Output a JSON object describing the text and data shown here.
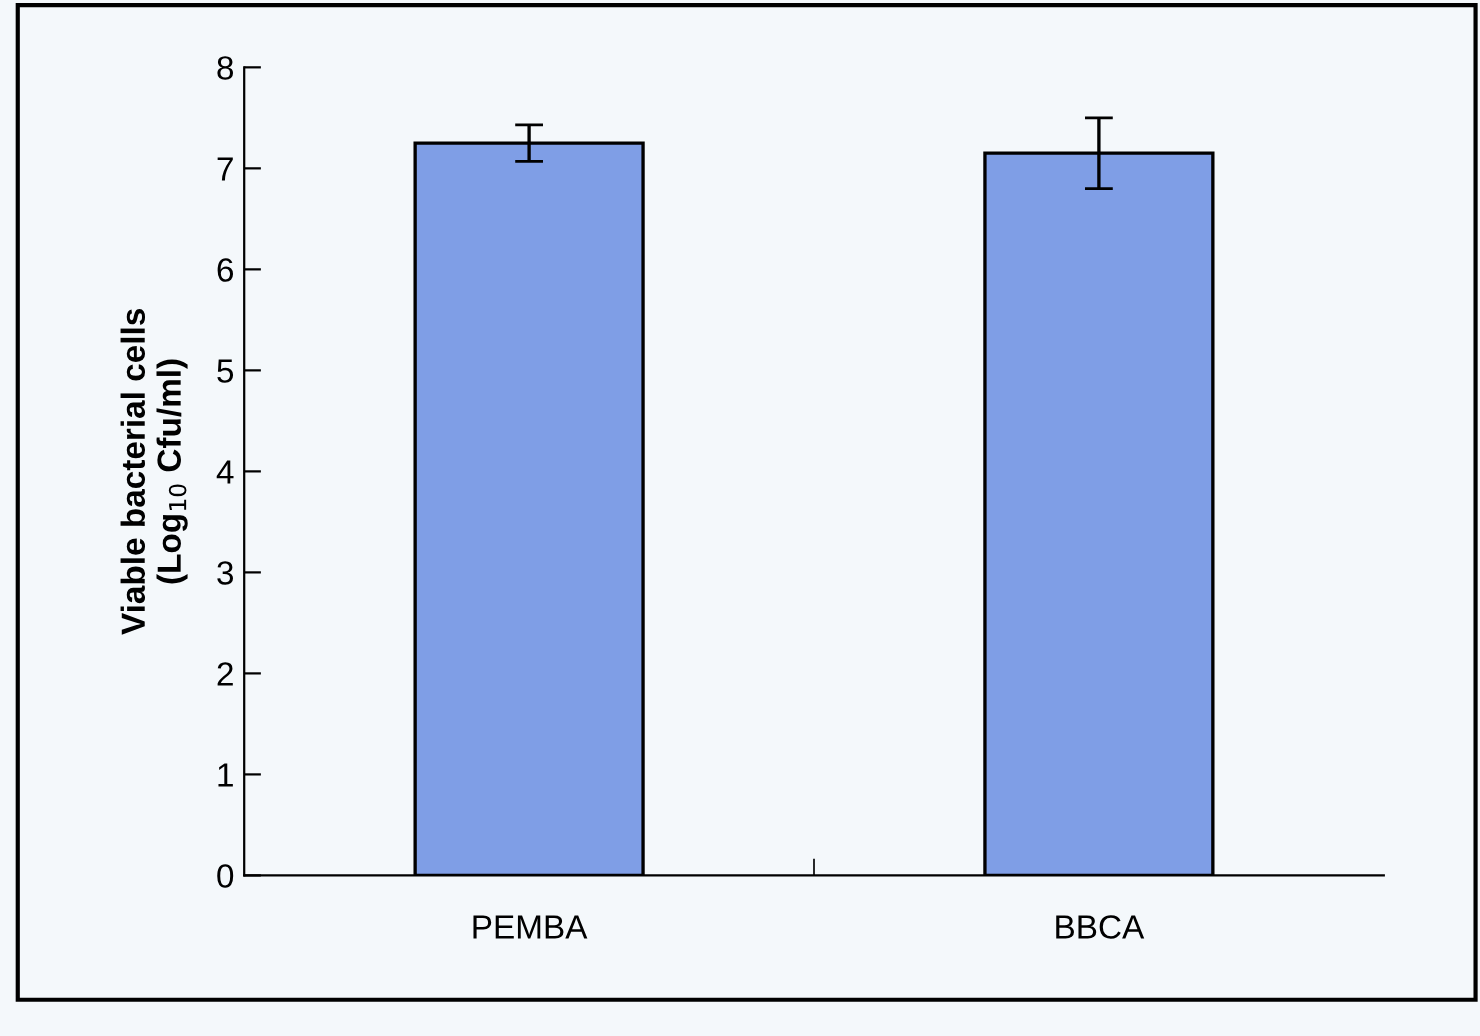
{
  "chart_data": {
    "type": "bar",
    "ylabel": "Viable bacterial cells\n(Log$_{10}$ Cfu/ml)",
    "categories": [
      "PEMBA",
      "BBCA"
    ],
    "values": [
      7.25,
      7.15
    ],
    "errors": [
      0.18,
      0.35
    ],
    "color": "#7f9ee6",
    "ylim": [
      0,
      8
    ],
    "yticks": [
      0,
      1,
      2,
      3,
      4,
      5,
      6,
      7,
      8
    ],
    "grid": false
  }
}
